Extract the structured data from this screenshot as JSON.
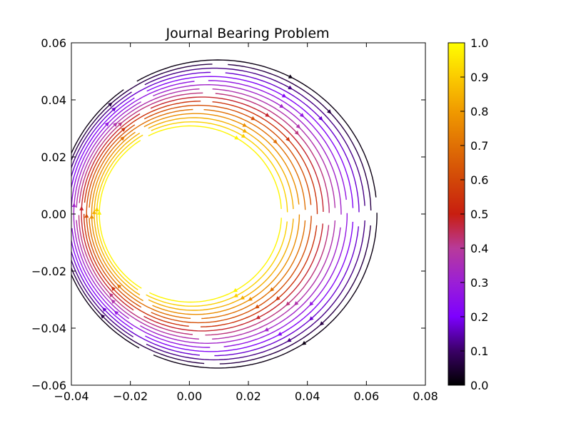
{
  "chart_data": {
    "type": "streamplot",
    "title": "Journal Bearing Problem",
    "xlabel": "",
    "ylabel": "",
    "xlim": [
      -0.04,
      0.08
    ],
    "ylim": [
      -0.06,
      0.06
    ],
    "x_ticks": [
      "−0.04",
      "−0.02",
      "0.00",
      "0.02",
      "0.04",
      "0.06",
      "0.08"
    ],
    "y_ticks": [
      "−0.06",
      "−0.04",
      "−0.02",
      "0.00",
      "0.02",
      "0.04",
      "0.06"
    ],
    "grid": false,
    "colormap": "gnuplot",
    "colorbar": {
      "range": [
        0.0,
        1.0
      ],
      "ticks": [
        "0.0",
        "0.1",
        "0.2",
        "0.3",
        "0.4",
        "0.5",
        "0.6",
        "0.7",
        "0.8",
        "0.9",
        "1.0"
      ],
      "colors": [
        "#000000",
        "#3a0066",
        "#7d00ff",
        "#9b1fd6",
        "#b83a9a",
        "#c81e10",
        "#d24708",
        "#e07004",
        "#f09a00",
        "#fbcb00",
        "#ffff00"
      ]
    },
    "geometry": {
      "inner_circle": {
        "center": [
          0.0,
          0.0
        ],
        "radius": 0.03
      },
      "outer_circle": {
        "center": [
          0.01,
          0.0
        ],
        "radius": 0.055
      }
    },
    "streamlines": {
      "levels": [
        0.98,
        0.91,
        0.84,
        0.77,
        0.7,
        0.62,
        0.55,
        0.48,
        0.42,
        0.37,
        0.32,
        0.27,
        0.22,
        0.17,
        0.12,
        0.07,
        0.02
      ],
      "direction": "clockwise"
    }
  }
}
